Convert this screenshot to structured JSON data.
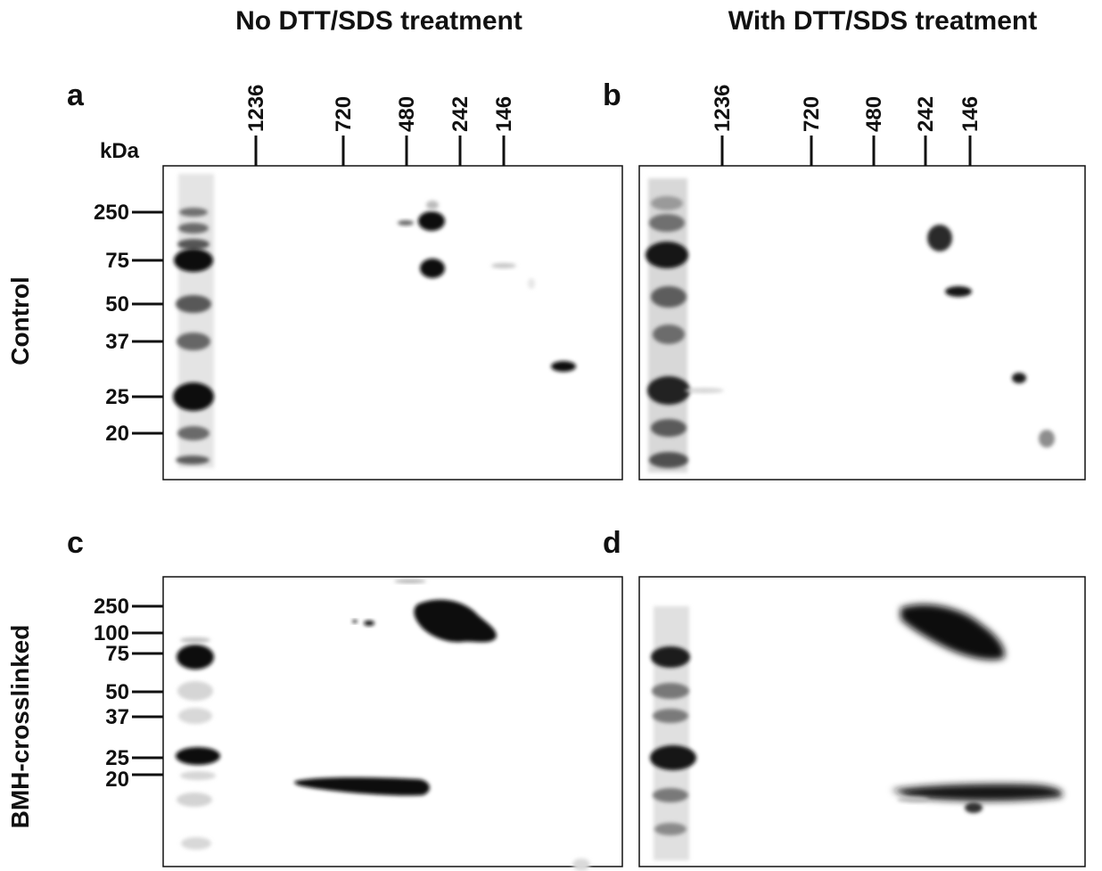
{
  "headers": {
    "left": "No DTT/SDS treatment",
    "right": "With  DTT/SDS treatment"
  },
  "panel_labels": {
    "a": "a",
    "b": "b",
    "c": "c",
    "d": "d"
  },
  "native_markers": [
    "1236",
    "720",
    "480",
    "242",
    "146"
  ],
  "kda_label": "kDa",
  "control_mw": [
    "250",
    "75",
    "50",
    "37",
    "25",
    "20"
  ],
  "crosslinked_mw": [
    "250",
    "100",
    "75",
    "50",
    "37",
    "25",
    "20"
  ],
  "row_labels": {
    "control": "Control",
    "crosslinked": "BMH-crosslinked"
  }
}
